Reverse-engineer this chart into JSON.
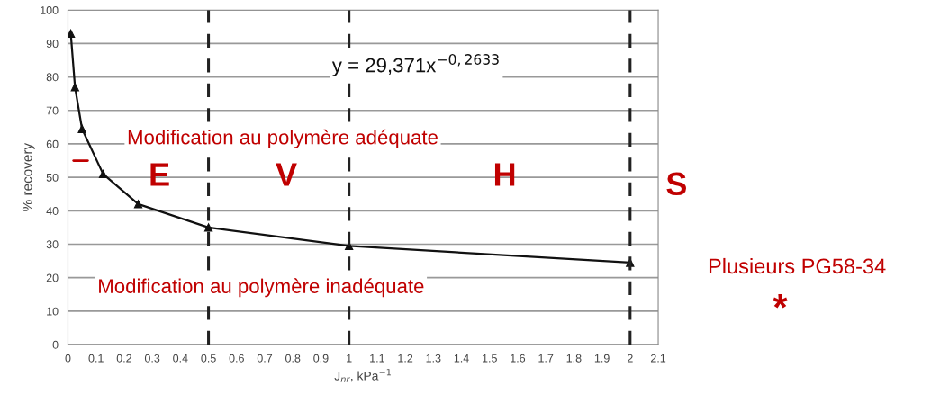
{
  "chart_data": {
    "type": "line",
    "xlabel": "J$_{nr}$, kPa$^{−1}$",
    "ylabel": "% recovery",
    "x": [
      0.01,
      0.025,
      0.05,
      0.125,
      0.25,
      0.5,
      1,
      2
    ],
    "series": [
      {
        "color": "#111111",
        "values": [
          93,
          77,
          64.5,
          51,
          42,
          35,
          29.5,
          24.5
        ]
      }
    ],
    "marker": "triangle",
    "line_style": "solid",
    "grid": "y",
    "xlim": [
      0,
      2.1
    ],
    "xticks": [
      0,
      0.1,
      0.2,
      0.3,
      0.4,
      0.5,
      0.6,
      0.7,
      0.8,
      0.9,
      1,
      1.1,
      1.2,
      1.3,
      1.4,
      1.5,
      1.6,
      1.7,
      1.8,
      1.9,
      2,
      2.1
    ],
    "ylim": [
      0,
      100
    ],
    "yticks": [
      0,
      10,
      20,
      30,
      40,
      50,
      60,
      70,
      80,
      90,
      100
    ],
    "ref_lines": [
      {
        "axis": "x",
        "value": 0.5,
        "color": "#222222",
        "line_style": "dashed"
      },
      {
        "axis": "x",
        "value": 1,
        "color": "#222222",
        "line_style": "dashed"
      },
      {
        "axis": "x",
        "value": 2,
        "color": "#222222",
        "line_style": "dashed"
      }
    ],
    "annotations": [
      "y = 29,371x$^{−0,2633}$",
      "Modification au polymère adéquate",
      "E",
      "V",
      "H",
      "S",
      "Modification au polymère inadéquate",
      "Plusieurs PG58-34",
      "*"
    ]
  }
}
